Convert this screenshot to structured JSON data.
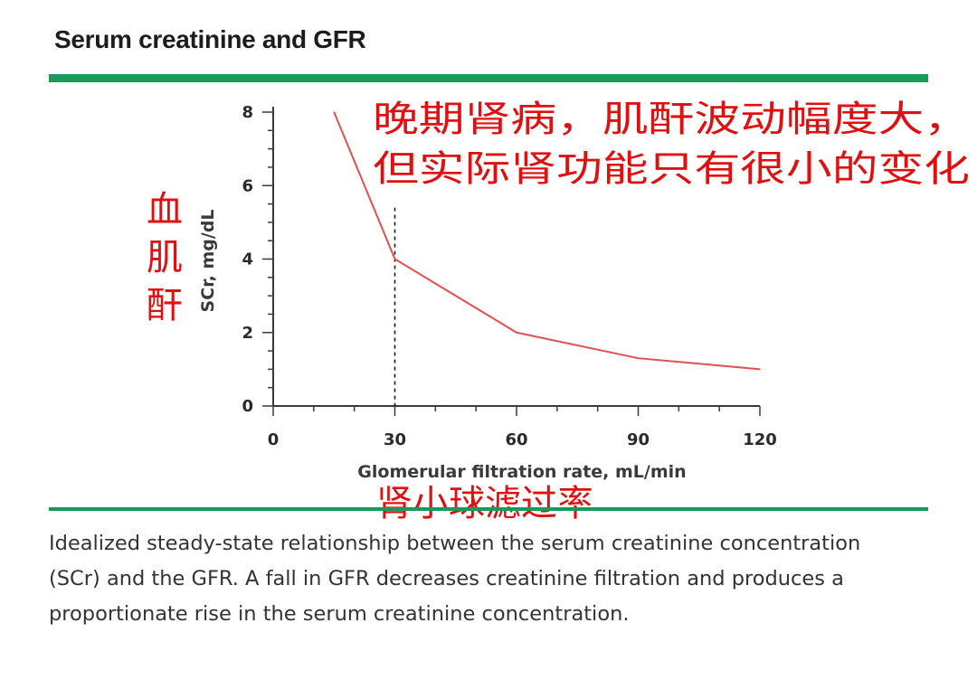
{
  "page": {
    "title": "Serum creatinine and GFR",
    "caption": "Idealized steady-state relationship between the serum creatinine concentration (SCr) and the GFR. A fall in GFR decreases creatinine filtration and produces a proportionate rise in the serum creatinine concentration."
  },
  "annotations": {
    "top_line1": "晚期肾病，肌酐波动幅度大，",
    "top_line2": "但实际肾功能只有很小的变化",
    "ylabel_chars": [
      "血",
      "肌",
      "酐"
    ],
    "xlabel_cn": "肾小球滤过率"
  },
  "colors": {
    "accent_green": "#1a9a5a",
    "line_red": "#e05050",
    "annotation_red": "#e01010"
  },
  "chart_data": {
    "type": "line",
    "xlabel": "Glomerular filtration rate, mL/min",
    "ylabel": "SCr, mg/dL",
    "xlim": [
      0,
      120
    ],
    "ylim": [
      0,
      8
    ],
    "x_ticks": [
      0,
      30,
      60,
      90,
      120
    ],
    "y_ticks": [
      0,
      2,
      4,
      6,
      8
    ],
    "series": [
      {
        "x": [
          15,
          30,
          60,
          90,
          120
        ],
        "y": [
          8,
          4,
          2,
          1.3,
          1
        ]
      }
    ],
    "reference_line": {
      "x": 30,
      "y_from": 0,
      "y_to": 5.4,
      "style": "dashed"
    }
  }
}
